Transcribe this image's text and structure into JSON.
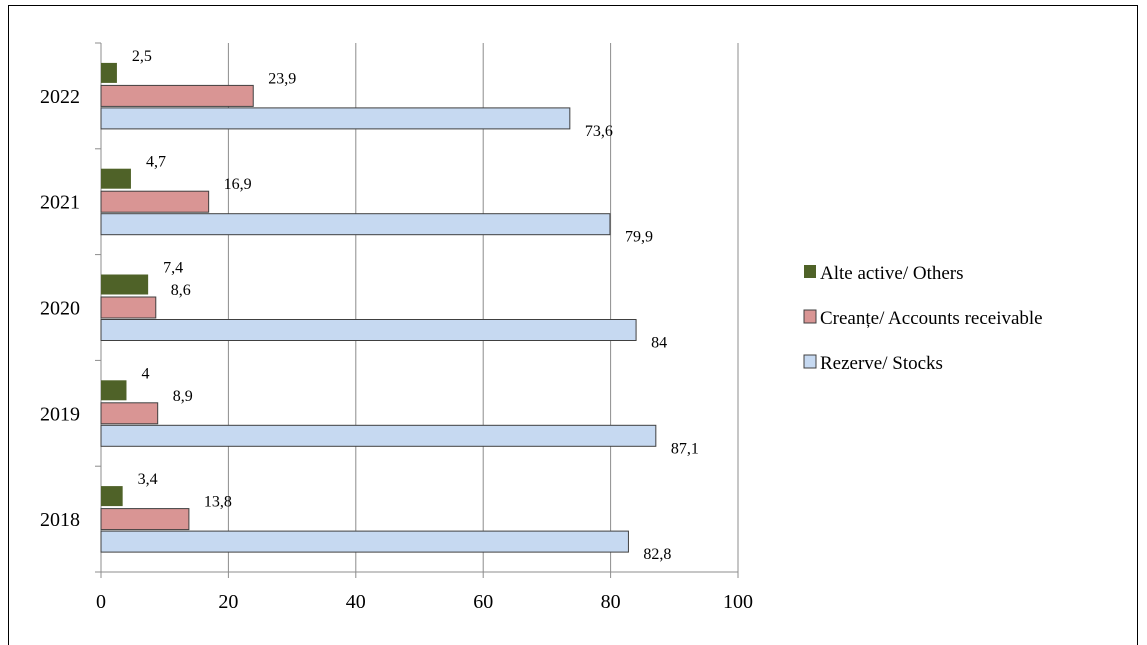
{
  "chart_data": {
    "type": "bar",
    "orientation": "horizontal",
    "categories": [
      "2018",
      "2019",
      "2020",
      "2021",
      "2022"
    ],
    "series": [
      {
        "name": "Alte active/ Others",
        "color": "#4F6228",
        "values": [
          3.4,
          4,
          7.4,
          4.7,
          2.5
        ],
        "labels": [
          "3,4",
          "4",
          "7,4",
          "4,7",
          "2,5"
        ]
      },
      {
        "name": "Creanțe/ Accounts receivable",
        "color": "#D99594",
        "values": [
          13.8,
          8.9,
          8.6,
          16.9,
          23.9
        ],
        "labels": [
          "13,8",
          "8,9",
          "8,6",
          "16,9",
          "23,9"
        ]
      },
      {
        "name": "Rezerve/ Stocks",
        "color": "#C6D9F1",
        "values": [
          82.8,
          87.1,
          84,
          79.9,
          73.6
        ],
        "labels": [
          "82,8",
          "87,1",
          "84",
          "79,9",
          "73,6"
        ]
      }
    ],
    "xlim": [
      0,
      100
    ],
    "x_ticks": [
      "0",
      "20",
      "40",
      "60",
      "80",
      "100"
    ],
    "grid": "vertical",
    "legend_position": "right",
    "title": "",
    "xlabel": "",
    "ylabel": ""
  }
}
